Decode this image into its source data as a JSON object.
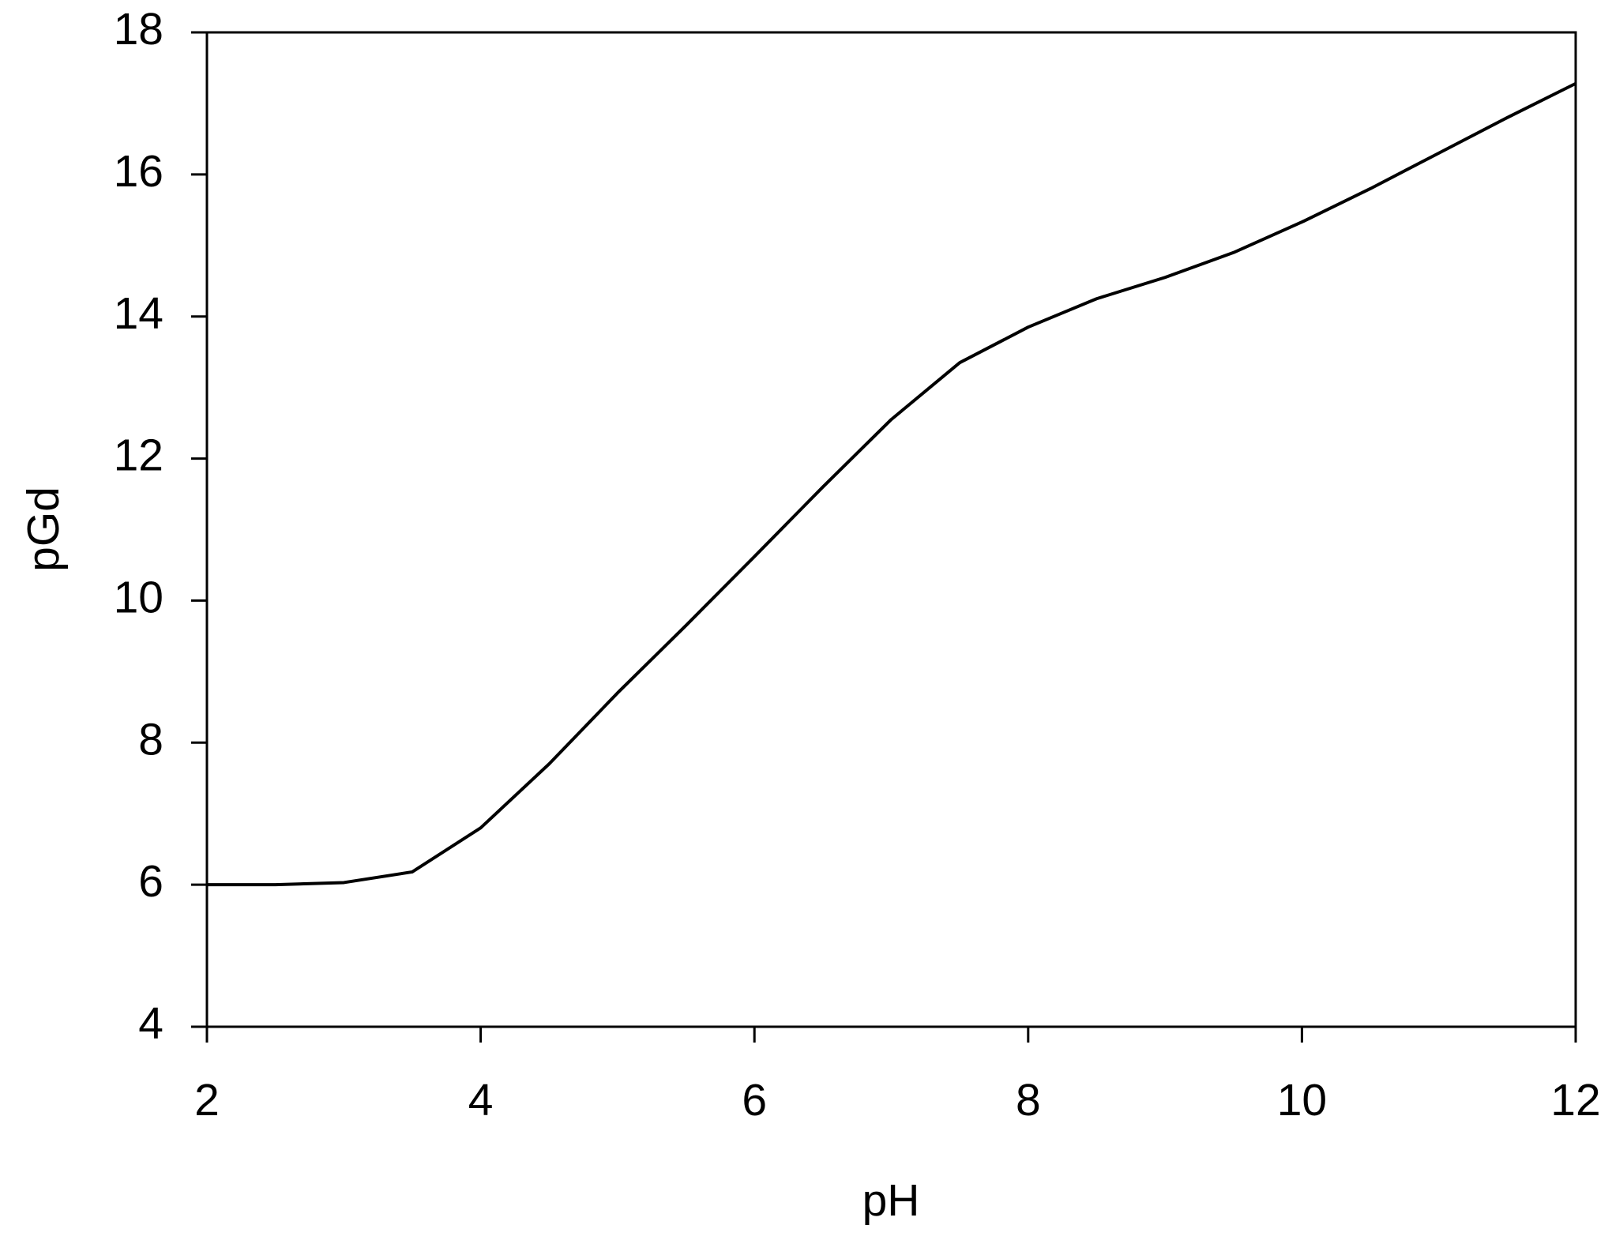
{
  "chart_data": {
    "type": "line",
    "x_label": "pH",
    "y_label": "pGd",
    "x": [
      2,
      2.5,
      3,
      3.5,
      4,
      4.5,
      5,
      5.5,
      6,
      6.5,
      7,
      7.5,
      8,
      8.5,
      9,
      9.5,
      10,
      10.5,
      11,
      11.5,
      12
    ],
    "series": [
      {
        "color": "#000000",
        "values": [
          6.0,
          6.0,
          6.03,
          6.18,
          6.8,
          7.7,
          8.7,
          9.65,
          10.62,
          11.6,
          12.55,
          13.35,
          13.85,
          14.25,
          14.55,
          14.9,
          15.33,
          15.8,
          16.3,
          16.8,
          17.28
        ]
      }
    ],
    "xlim": [
      2,
      12
    ],
    "xticks": [
      2,
      4,
      6,
      8,
      10,
      12
    ],
    "ylim": [
      4,
      18
    ],
    "yticks": [
      4,
      6,
      8,
      10,
      12,
      14,
      16,
      18
    ],
    "grid": false
  }
}
